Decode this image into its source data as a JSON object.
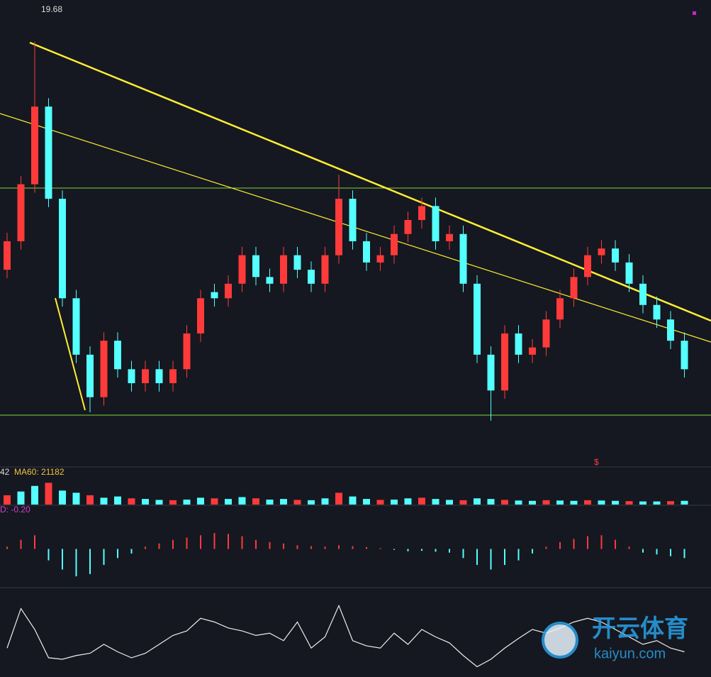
{
  "chart_data": [
    {
      "type": "candlestick",
      "high_label": "19.68",
      "ylim": [
        12.3,
        20.3
      ],
      "up_color": "#ff3a3a",
      "down_color": "#54ffff",
      "open": [
        15.6,
        16.11,
        17.13,
        18.52,
        16.87,
        15.09,
        14.08,
        13.32,
        14.33,
        13.82,
        13.57,
        13.82,
        13.57,
        13.82,
        14.46,
        15.2,
        15.09,
        15.35,
        15.86,
        15.47,
        15.35,
        15.86,
        15.6,
        15.35,
        15.86,
        16.87,
        16.11,
        15.73,
        15.86,
        16.24,
        16.49,
        16.74,
        16.11,
        16.24,
        15.35,
        14.08,
        13.44,
        14.46,
        14.08,
        14.21,
        14.71,
        15.09,
        15.47,
        15.86,
        15.98,
        15.73,
        15.35,
        14.97,
        14.71,
        14.33
      ],
      "high": [
        16.26,
        17.28,
        19.68,
        18.67,
        17.02,
        15.24,
        14.23,
        14.48,
        14.48,
        13.97,
        13.97,
        13.97,
        13.97,
        14.61,
        15.24,
        15.35,
        15.5,
        16.01,
        16.01,
        15.62,
        16.01,
        16.01,
        15.75,
        16.01,
        17.3,
        17.02,
        16.26,
        16.01,
        16.39,
        16.64,
        16.89,
        16.89,
        16.39,
        16.39,
        15.5,
        14.23,
        14.61,
        14.61,
        14.36,
        14.86,
        15.24,
        15.62,
        16.01,
        16.13,
        16.13,
        15.88,
        15.5,
        15.12,
        14.86,
        14.48
      ],
      "low": [
        15.45,
        15.96,
        16.98,
        16.72,
        14.94,
        13.93,
        13.05,
        13.17,
        13.67,
        13.42,
        13.42,
        13.42,
        13.42,
        13.67,
        14.31,
        14.94,
        14.94,
        15.2,
        15.32,
        15.2,
        15.2,
        15.45,
        15.2,
        15.2,
        15.71,
        15.96,
        15.58,
        15.58,
        15.71,
        16.09,
        16.34,
        15.96,
        15.96,
        15.2,
        13.93,
        12.9,
        13.29,
        13.93,
        13.93,
        14.06,
        14.56,
        14.94,
        15.32,
        15.71,
        15.58,
        15.2,
        14.82,
        14.56,
        14.18,
        13.67
      ],
      "close": [
        16.11,
        17.13,
        18.52,
        16.87,
        15.09,
        14.08,
        13.32,
        14.33,
        13.82,
        13.57,
        13.82,
        13.57,
        13.82,
        14.46,
        15.09,
        15.09,
        15.35,
        15.86,
        15.47,
        15.35,
        15.86,
        15.6,
        15.35,
        15.86,
        16.87,
        16.11,
        15.73,
        15.86,
        16.24,
        16.49,
        16.74,
        16.11,
        16.24,
        15.35,
        14.08,
        13.44,
        14.46,
        14.08,
        14.21,
        14.71,
        15.09,
        15.47,
        15.86,
        15.98,
        15.73,
        15.35,
        14.97,
        14.71,
        14.33,
        13.82
      ],
      "marker": "$"
    },
    {
      "type": "bar",
      "title_prefix": "42",
      "title": "MA60: 21182",
      "ylim": [
        0,
        80000
      ],
      "values": [
        30000,
        42000,
        60000,
        70000,
        45000,
        38000,
        30000,
        22000,
        26000,
        20000,
        18000,
        15000,
        14000,
        16000,
        22000,
        20000,
        18000,
        24000,
        20000,
        16000,
        18000,
        15000,
        14000,
        20000,
        38000,
        26000,
        18000,
        15000,
        16000,
        20000,
        22000,
        18000,
        15000,
        14000,
        20000,
        18000,
        15000,
        13000,
        12000,
        14000,
        13000,
        12000,
        14000,
        13000,
        12000,
        11000,
        10000,
        10000,
        11000,
        12000
      ]
    },
    {
      "type": "bar",
      "title": "D: -0.20",
      "ylim": [
        -0.8,
        0.6
      ],
      "values": [
        0.05,
        0.2,
        0.3,
        -0.25,
        -0.45,
        -0.6,
        -0.55,
        -0.35,
        -0.2,
        -0.1,
        0.05,
        0.12,
        0.2,
        0.25,
        0.3,
        0.35,
        0.33,
        0.28,
        0.2,
        0.15,
        0.12,
        0.08,
        0.06,
        0.05,
        0.08,
        0.06,
        0.04,
        0.02,
        -0.02,
        -0.05,
        -0.04,
        -0.06,
        -0.08,
        -0.2,
        -0.35,
        -0.45,
        -0.35,
        -0.25,
        -0.1,
        0.05,
        0.15,
        0.22,
        0.28,
        0.3,
        0.2,
        0.05,
        -0.08,
        -0.12,
        -0.16,
        -0.2
      ]
    },
    {
      "type": "line",
      "ylim": [
        0,
        100
      ],
      "values": [
        35,
        88,
        60,
        22,
        20,
        25,
        28,
        40,
        30,
        22,
        28,
        40,
        52,
        58,
        75,
        70,
        62,
        58,
        52,
        55,
        45,
        70,
        35,
        50,
        92,
        45,
        38,
        35,
        55,
        40,
        60,
        50,
        42,
        25,
        10,
        20,
        35,
        48,
        60,
        55,
        62,
        70,
        75,
        70,
        60,
        50,
        40,
        45,
        35,
        30
      ]
    }
  ],
  "watermark": {
    "brand": "开云体育",
    "site": "kaiyun.com"
  }
}
